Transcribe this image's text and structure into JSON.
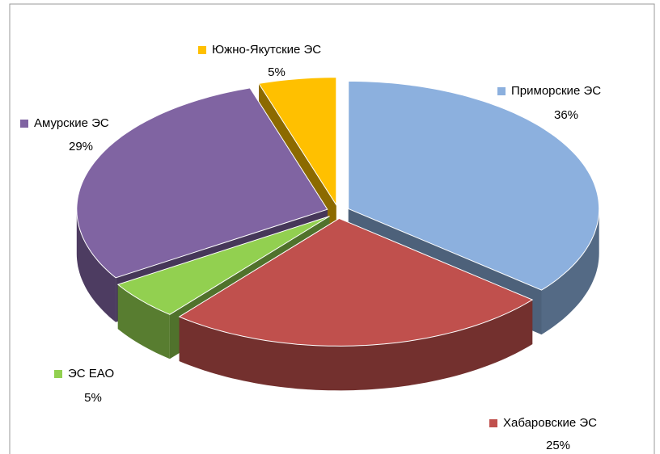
{
  "chart_data": {
    "type": "pie",
    "categories": [
      "Приморские ЭС",
      "Хабаровские ЭС",
      "ЭС ЕАО",
      "Амурские ЭС",
      "Южно-Якутские ЭС"
    ],
    "values": [
      36,
      25,
      5,
      29,
      5
    ],
    "value_labels": [
      "36%",
      "25%",
      "5%",
      "29%",
      "5%"
    ],
    "colors": [
      "#8cb0de",
      "#c0504d",
      "#92d050",
      "#8064a2",
      "#ffc000"
    ]
  }
}
